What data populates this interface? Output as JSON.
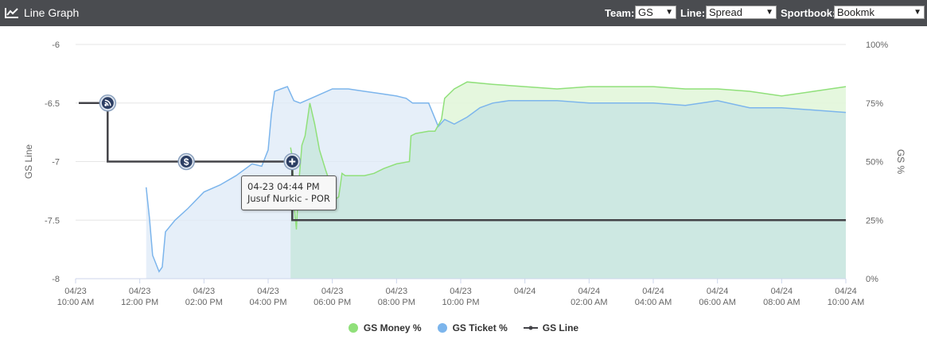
{
  "header": {
    "title": "Line Graph",
    "icon": "line-chart-icon",
    "team_label": "Team:",
    "team_value": "GS",
    "line_label": "Line:",
    "line_value": "Spread",
    "sportbook_label": "Sportbook:",
    "sportbook_value": "Bookmk"
  },
  "tooltip": {
    "time": "04-23 04:44 PM",
    "text": "Jusuf Nurkic - POR"
  },
  "chart_data": {
    "type": "line",
    "x_start": "04/23 10:00 AM",
    "x_end": "04/24 10:00 AM",
    "x_ticks": [
      [
        "04/23",
        "10:00 AM"
      ],
      [
        "04/23",
        "12:00 PM"
      ],
      [
        "04/23",
        "02:00 PM"
      ],
      [
        "04/23",
        "04:00 PM"
      ],
      [
        "04/23",
        "06:00 PM"
      ],
      [
        "04/23",
        "08:00 PM"
      ],
      [
        "04/23",
        "10:00 PM"
      ],
      [
        "04/24",
        ""
      ],
      [
        "04/24",
        "02:00 AM"
      ],
      [
        "04/24",
        "04:00 AM"
      ],
      [
        "04/24",
        "06:00 AM"
      ],
      [
        "04/24",
        "08:00 AM"
      ],
      [
        "04/24",
        "10:00 AM"
      ]
    ],
    "y_left": {
      "label": "GS Line",
      "range": [
        -8,
        -6
      ],
      "ticks": [
        "-6",
        "-6.5",
        "-7",
        "-7.5",
        "-8"
      ]
    },
    "y_right": {
      "label": "GS %",
      "range": [
        0,
        100
      ],
      "ticks": [
        "100%",
        "75%",
        "50%",
        "25%",
        "0%"
      ]
    },
    "grid": true,
    "legend_position": "bottom",
    "colors": {
      "money": "#90e07a",
      "ticket": "#7cb5ec",
      "line": "#434348",
      "money_fill": "#e2f6da",
      "ticket_fill": "#dde9f7",
      "overlap_fill": "#cde8e2"
    },
    "series": [
      {
        "name": "GS Money %",
        "key": "money",
        "points": [
          [
            6.7,
            56
          ],
          [
            6.75,
            52
          ],
          [
            6.82,
            30
          ],
          [
            6.88,
            21
          ],
          [
            6.95,
            40
          ],
          [
            7.05,
            57
          ],
          [
            7.15,
            61
          ],
          [
            7.3,
            75
          ],
          [
            7.45,
            66
          ],
          [
            7.6,
            55
          ],
          [
            7.8,
            46
          ],
          [
            8.0,
            38
          ],
          [
            8.1,
            34
          ],
          [
            8.2,
            35
          ],
          [
            8.3,
            45
          ],
          [
            8.4,
            44
          ],
          [
            8.7,
            44
          ],
          [
            9.0,
            44
          ],
          [
            9.3,
            45
          ],
          [
            9.6,
            47
          ],
          [
            10.0,
            49
          ],
          [
            10.4,
            50
          ],
          [
            10.45,
            61
          ],
          [
            10.6,
            62
          ],
          [
            11.0,
            63
          ],
          [
            11.2,
            63
          ],
          [
            11.4,
            68
          ],
          [
            11.5,
            77
          ],
          [
            11.8,
            81
          ],
          [
            12.2,
            84
          ],
          [
            13.0,
            83
          ],
          [
            14.0,
            82
          ],
          [
            15.0,
            81
          ],
          [
            16.0,
            82
          ],
          [
            17.0,
            82
          ],
          [
            18.0,
            82
          ],
          [
            19.0,
            81
          ],
          [
            20.0,
            81
          ],
          [
            21.0,
            80
          ],
          [
            22.0,
            78
          ],
          [
            23.0,
            80
          ],
          [
            24.0,
            82
          ]
        ]
      },
      {
        "name": "GS Ticket %",
        "key": "ticket",
        "points": [
          [
            2.2,
            39
          ],
          [
            2.3,
            26
          ],
          [
            2.4,
            10
          ],
          [
            2.6,
            3
          ],
          [
            2.7,
            5
          ],
          [
            2.8,
            20
          ],
          [
            3.1,
            25
          ],
          [
            3.5,
            30
          ],
          [
            4.0,
            37
          ],
          [
            4.5,
            40
          ],
          [
            5.0,
            44
          ],
          [
            5.5,
            49
          ],
          [
            5.8,
            48
          ],
          [
            6.0,
            55
          ],
          [
            6.1,
            70
          ],
          [
            6.2,
            80
          ],
          [
            6.4,
            81
          ],
          [
            6.6,
            82
          ],
          [
            6.8,
            76
          ],
          [
            7.0,
            75
          ],
          [
            7.5,
            78
          ],
          [
            8.0,
            81
          ],
          [
            8.5,
            81
          ],
          [
            9.0,
            80
          ],
          [
            9.5,
            79
          ],
          [
            10.0,
            78
          ],
          [
            10.3,
            77
          ],
          [
            10.5,
            75
          ],
          [
            11.0,
            75
          ],
          [
            11.3,
            65
          ],
          [
            11.5,
            68
          ],
          [
            11.8,
            66
          ],
          [
            12.2,
            69
          ],
          [
            12.6,
            73
          ],
          [
            13.0,
            75
          ],
          [
            13.5,
            76
          ],
          [
            14.0,
            76
          ],
          [
            15.0,
            76
          ],
          [
            16.0,
            75
          ],
          [
            17.0,
            75
          ],
          [
            18.0,
            75
          ],
          [
            19.0,
            74
          ],
          [
            20.0,
            76
          ],
          [
            21.0,
            73
          ],
          [
            22.0,
            73
          ],
          [
            23.0,
            72
          ],
          [
            24.0,
            71
          ]
        ]
      },
      {
        "name": "GS Line",
        "key": "line",
        "points": [
          [
            0.1,
            -6.5
          ],
          [
            1.0,
            -6.5
          ],
          [
            1.0,
            -7.0
          ],
          [
            6.75,
            -7.0
          ],
          [
            6.75,
            -7.5
          ],
          [
            24.0,
            -7.5
          ]
        ]
      }
    ],
    "events": [
      {
        "x": 1.0,
        "y": -6.5,
        "icon": "rss-icon"
      },
      {
        "x": 3.45,
        "y": -7.0,
        "icon": "dollar-icon"
      },
      {
        "x": 6.75,
        "y": -7.0,
        "icon": "plus-icon"
      }
    ]
  },
  "legend": {
    "money": "GS Money %",
    "ticket": "GS Ticket %",
    "line": "GS Line"
  }
}
